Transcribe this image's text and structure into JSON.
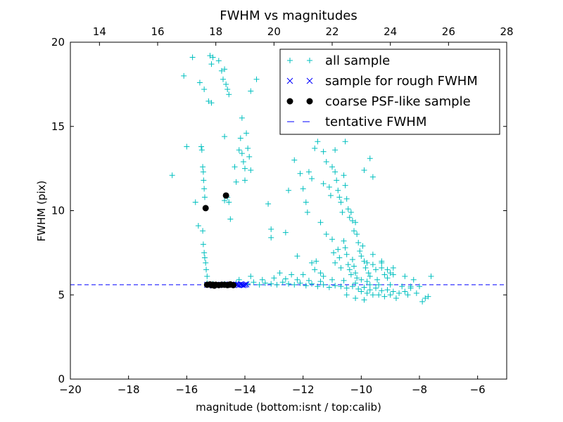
{
  "chart_data": {
    "type": "scatter",
    "title": "FWHM vs magnitudes",
    "xlabel": "magnitude (bottom:isnt / top:calib)",
    "ylabel": "FWHM (pix)",
    "xlim": [
      -20,
      -5
    ],
    "ylim": [
      0,
      20
    ],
    "top_xlim": [
      13,
      28
    ],
    "x_ticks": [
      -20,
      -18,
      -16,
      -14,
      -12,
      -10,
      -8,
      -6
    ],
    "x_tick_labels": [
      "−20",
      "−18",
      "−16",
      "−14",
      "−12",
      "−10",
      "−8",
      "−6"
    ],
    "top_x_ticks": [
      14,
      16,
      18,
      20,
      22,
      24,
      26,
      28
    ],
    "y_ticks": [
      0,
      5,
      10,
      15,
      20
    ],
    "grid": false,
    "legend_position": "top-right",
    "tentative_fwhm": 5.6,
    "colors": {
      "all": "#00bfbf",
      "rough": "#0000ff",
      "coarse": "#000000",
      "tentative": "#0000ff"
    },
    "series": [
      {
        "name": "all sample",
        "marker": "plus",
        "points": [
          [
            -16.5,
            12.1
          ],
          [
            -16.1,
            18.0
          ],
          [
            -16.0,
            13.8
          ],
          [
            -15.8,
            19.1
          ],
          [
            -15.7,
            10.5
          ],
          [
            -15.6,
            9.1
          ],
          [
            -15.55,
            17.6
          ],
          [
            -15.5,
            13.8
          ],
          [
            -15.48,
            13.6
          ],
          [
            -15.45,
            12.6
          ],
          [
            -15.43,
            12.3
          ],
          [
            -15.42,
            11.8
          ],
          [
            -15.4,
            11.3
          ],
          [
            -15.38,
            10.8
          ],
          [
            -15.45,
            8.8
          ],
          [
            -15.43,
            8.0
          ],
          [
            -15.4,
            7.5
          ],
          [
            -15.38,
            7.2
          ],
          [
            -15.35,
            6.9
          ],
          [
            -15.33,
            6.5
          ],
          [
            -15.3,
            6.1
          ],
          [
            -15.4,
            17.2
          ],
          [
            -15.25,
            16.5
          ],
          [
            -15.15,
            16.4
          ],
          [
            -15.2,
            19.2
          ],
          [
            -15.15,
            18.7
          ],
          [
            -15.1,
            19.1
          ],
          [
            -14.9,
            18.9
          ],
          [
            -14.8,
            18.3
          ],
          [
            -14.75,
            17.8
          ],
          [
            -14.7,
            18.4
          ],
          [
            -14.65,
            17.5
          ],
          [
            -14.6,
            17.2
          ],
          [
            -14.55,
            16.9
          ],
          [
            -14.7,
            14.4
          ],
          [
            -14.6,
            10.8
          ],
          [
            -14.55,
            10.5
          ],
          [
            -14.5,
            9.5
          ],
          [
            -14.7,
            10.6
          ],
          [
            -14.35,
            12.6
          ],
          [
            -14.3,
            11.7
          ],
          [
            -14.2,
            13.6
          ],
          [
            -14.15,
            14.3
          ],
          [
            -14.1,
            13.4
          ],
          [
            -14.05,
            12.9
          ],
          [
            -14.0,
            12.5
          ],
          [
            -14.1,
            15.5
          ],
          [
            -13.95,
            14.6
          ],
          [
            -13.9,
            13.7
          ],
          [
            -13.85,
            13.2
          ],
          [
            -13.8,
            12.4
          ],
          [
            -14.0,
            11.8
          ],
          [
            -13.8,
            17.1
          ],
          [
            -13.6,
            17.8
          ],
          [
            -13.2,
            10.4
          ],
          [
            -13.1,
            8.9
          ],
          [
            -13.1,
            8.4
          ],
          [
            -12.6,
            8.7
          ],
          [
            -12.3,
            13.0
          ],
          [
            -12.2,
            7.3
          ],
          [
            -12.1,
            12.2
          ],
          [
            -12.0,
            11.3
          ],
          [
            -11.9,
            10.5
          ],
          [
            -11.85,
            9.9
          ],
          [
            -11.8,
            12.3
          ],
          [
            -11.7,
            11.9
          ],
          [
            -11.6,
            13.7
          ],
          [
            -11.5,
            14.1
          ],
          [
            -11.4,
            9.3
          ],
          [
            -11.3,
            13.5
          ],
          [
            -11.2,
            12.9
          ],
          [
            -11.1,
            11.4
          ],
          [
            -11.05,
            10.9
          ],
          [
            -11.0,
            12.6
          ],
          [
            -10.9,
            12.3
          ],
          [
            -10.85,
            11.8
          ],
          [
            -10.8,
            11.2
          ],
          [
            -10.75,
            10.8
          ],
          [
            -10.7,
            10.5
          ],
          [
            -10.65,
            9.9
          ],
          [
            -10.6,
            12.1
          ],
          [
            -10.55,
            11.5
          ],
          [
            -10.5,
            10.7
          ],
          [
            -10.45,
            10.1
          ],
          [
            -10.4,
            9.6
          ],
          [
            -10.35,
            9.9
          ],
          [
            -10.3,
            9.4
          ],
          [
            -10.25,
            8.8
          ],
          [
            -10.2,
            9.3
          ],
          [
            -10.15,
            8.6
          ],
          [
            -10.1,
            8.1
          ],
          [
            -10.05,
            7.6
          ],
          [
            -10.0,
            7.3
          ],
          [
            -9.95,
            7.9
          ],
          [
            -9.9,
            7.0
          ],
          [
            -9.85,
            6.6
          ],
          [
            -9.8,
            6.9
          ],
          [
            -9.75,
            6.3
          ],
          [
            -9.7,
            6.1
          ],
          [
            -9.6,
            6.8
          ],
          [
            -9.5,
            6.5
          ],
          [
            -9.45,
            5.9
          ],
          [
            -9.3,
            6.6
          ],
          [
            -9.2,
            6.2
          ],
          [
            -9.1,
            6.0
          ],
          [
            -11.2,
            8.6
          ],
          [
            -11.0,
            8.3
          ],
          [
            -10.95,
            7.5
          ],
          [
            -10.9,
            6.9
          ],
          [
            -10.8,
            7.7
          ],
          [
            -10.75,
            7.2
          ],
          [
            -10.7,
            6.6
          ],
          [
            -10.6,
            8.2
          ],
          [
            -10.55,
            7.8
          ],
          [
            -10.5,
            7.4
          ],
          [
            -10.45,
            6.8
          ],
          [
            -10.4,
            6.5
          ],
          [
            -10.35,
            6.2
          ],
          [
            -10.3,
            7.1
          ],
          [
            -10.25,
            6.7
          ],
          [
            -10.2,
            6.3
          ],
          [
            -10.15,
            6.0
          ],
          [
            -11.6,
            6.5
          ],
          [
            -11.4,
            6.3
          ],
          [
            -11.3,
            6.1
          ],
          [
            -11.7,
            6.9
          ],
          [
            -12.0,
            6.2
          ],
          [
            -11.55,
            7.0
          ],
          [
            -11.5,
            15.0
          ],
          [
            -11.3,
            11.6
          ],
          [
            -10.9,
            13.6
          ],
          [
            -10.55,
            14.1
          ],
          [
            -9.7,
            13.1
          ],
          [
            -9.6,
            12.0
          ],
          [
            -9.9,
            12.4
          ],
          [
            -12.5,
            11.2
          ],
          [
            -15.3,
            5.7
          ],
          [
            -15.1,
            5.65
          ],
          [
            -14.9,
            5.6
          ],
          [
            -14.7,
            5.65
          ],
          [
            -14.5,
            5.6
          ],
          [
            -14.3,
            5.7
          ],
          [
            -14.1,
            5.6
          ],
          [
            -13.9,
            5.65
          ],
          [
            -13.7,
            5.75
          ],
          [
            -13.5,
            5.6
          ],
          [
            -13.3,
            5.7
          ],
          [
            -13.1,
            5.65
          ],
          [
            -12.9,
            5.6
          ],
          [
            -12.7,
            5.75
          ],
          [
            -12.5,
            5.65
          ],
          [
            -12.3,
            5.6
          ],
          [
            -12.1,
            5.7
          ],
          [
            -11.9,
            5.55
          ],
          [
            -11.7,
            5.65
          ],
          [
            -11.5,
            5.5
          ],
          [
            -11.3,
            5.6
          ],
          [
            -11.1,
            5.45
          ],
          [
            -10.9,
            5.55
          ],
          [
            -10.7,
            5.5
          ],
          [
            -10.5,
            5.4
          ],
          [
            -10.3,
            5.5
          ],
          [
            -10.1,
            5.35
          ],
          [
            -9.9,
            5.45
          ],
          [
            -9.7,
            5.3
          ],
          [
            -9.5,
            5.4
          ],
          [
            -9.3,
            5.25
          ],
          [
            -9.1,
            5.3
          ],
          [
            -8.9,
            5.2
          ],
          [
            -8.7,
            5.1
          ],
          [
            -8.5,
            5.2
          ],
          [
            -14.2,
            5.9
          ],
          [
            -13.8,
            6.1
          ],
          [
            -13.4,
            5.9
          ],
          [
            -13.0,
            6.0
          ],
          [
            -12.6,
            5.95
          ],
          [
            -12.2,
            5.9
          ],
          [
            -11.8,
            5.85
          ],
          [
            -11.4,
            5.8
          ],
          [
            -11.0,
            5.9
          ],
          [
            -10.6,
            5.85
          ],
          [
            -10.2,
            5.7
          ],
          [
            -9.8,
            5.8
          ],
          [
            -9.4,
            5.6
          ],
          [
            -9.0,
            5.6
          ],
          [
            -8.6,
            5.5
          ],
          [
            -8.3,
            5.4
          ],
          [
            -8.0,
            5.5
          ],
          [
            -12.8,
            6.3
          ],
          [
            -12.4,
            6.2
          ],
          [
            -10.0,
            5.2
          ],
          [
            -9.8,
            5.1
          ],
          [
            -9.6,
            5.0
          ],
          [
            -9.4,
            5.0
          ],
          [
            -9.2,
            4.9
          ],
          [
            -9.0,
            5.0
          ],
          [
            -8.8,
            4.8
          ],
          [
            -10.5,
            5.0
          ],
          [
            -10.2,
            4.8
          ],
          [
            -9.9,
            4.7
          ],
          [
            -10.0,
            5.9
          ],
          [
            -9.7,
            5.6
          ],
          [
            -8.9,
            6.2
          ],
          [
            -8.5,
            6.1
          ],
          [
            -8.2,
            5.9
          ],
          [
            -9.1,
            6.5
          ],
          [
            -9.3,
            7.0
          ],
          [
            -9.6,
            7.4
          ],
          [
            -9.3,
            6.9
          ],
          [
            -8.9,
            6.6
          ],
          [
            -9.0,
            6.3
          ],
          [
            -7.9,
            4.6
          ],
          [
            -7.8,
            4.8
          ],
          [
            -7.7,
            4.9
          ],
          [
            -7.6,
            6.1
          ],
          [
            -8.1,
            5.1
          ],
          [
            -8.3,
            5.5
          ],
          [
            -8.4,
            5.0
          ]
        ]
      },
      {
        "name": "sample for rough FWHM",
        "marker": "x",
        "points": [
          [
            -15.3,
            5.6
          ],
          [
            -15.2,
            5.6
          ],
          [
            -15.1,
            5.55
          ],
          [
            -15.0,
            5.6
          ],
          [
            -14.9,
            5.58
          ],
          [
            -14.8,
            5.6
          ],
          [
            -14.7,
            5.62
          ],
          [
            -14.6,
            5.6
          ],
          [
            -14.5,
            5.58
          ],
          [
            -14.4,
            5.6
          ],
          [
            -14.3,
            5.62
          ],
          [
            -14.25,
            5.6
          ],
          [
            -14.2,
            5.58
          ],
          [
            -14.15,
            5.62
          ],
          [
            -14.1,
            5.6
          ],
          [
            -14.05,
            5.58
          ],
          [
            -14.0,
            5.6
          ],
          [
            -13.95,
            5.62
          ]
        ]
      },
      {
        "name": "coarse PSF-like sample",
        "marker": "circle",
        "points": [
          [
            -15.35,
            10.15
          ],
          [
            -14.65,
            10.9
          ],
          [
            -15.3,
            5.6
          ],
          [
            -15.2,
            5.62
          ],
          [
            -15.15,
            5.58
          ],
          [
            -15.1,
            5.6
          ],
          [
            -15.05,
            5.55
          ],
          [
            -15.0,
            5.6
          ],
          [
            -14.9,
            5.58
          ],
          [
            -14.8,
            5.6
          ],
          [
            -14.7,
            5.6
          ],
          [
            -14.6,
            5.58
          ],
          [
            -14.55,
            5.6
          ],
          [
            -14.5,
            5.62
          ],
          [
            -14.4,
            5.58
          ]
        ]
      }
    ],
    "legend_entries": [
      "all sample",
      "sample for rough FWHM",
      "coarse PSF-like sample",
      "tentative FWHM"
    ]
  }
}
